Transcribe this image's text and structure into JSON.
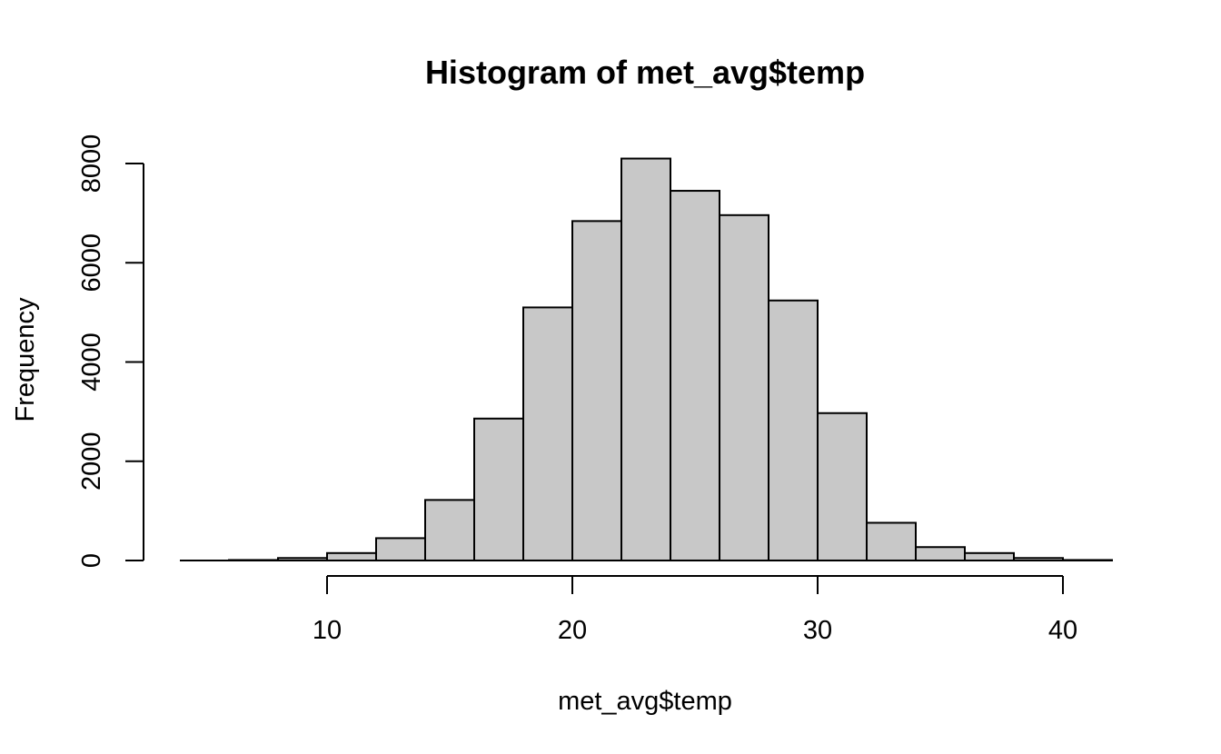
{
  "chart_data": {
    "type": "bar",
    "subtype": "histogram",
    "title": "Histogram of met_avg$temp",
    "xlabel": "met_avg$temp",
    "ylabel": "Frequency",
    "bins": [
      {
        "start": 6,
        "end": 8,
        "count": 10
      },
      {
        "start": 8,
        "end": 10,
        "count": 50
      },
      {
        "start": 10,
        "end": 12,
        "count": 150
      },
      {
        "start": 12,
        "end": 14,
        "count": 450
      },
      {
        "start": 14,
        "end": 16,
        "count": 1220
      },
      {
        "start": 16,
        "end": 18,
        "count": 2860
      },
      {
        "start": 18,
        "end": 20,
        "count": 5100
      },
      {
        "start": 20,
        "end": 22,
        "count": 6840
      },
      {
        "start": 22,
        "end": 24,
        "count": 8100
      },
      {
        "start": 24,
        "end": 26,
        "count": 7450
      },
      {
        "start": 26,
        "end": 28,
        "count": 6960
      },
      {
        "start": 28,
        "end": 30,
        "count": 5240
      },
      {
        "start": 30,
        "end": 32,
        "count": 2970
      },
      {
        "start": 32,
        "end": 34,
        "count": 760
      },
      {
        "start": 34,
        "end": 36,
        "count": 270
      },
      {
        "start": 36,
        "end": 38,
        "count": 150
      },
      {
        "start": 38,
        "end": 40,
        "count": 50
      },
      {
        "start": 40,
        "end": 42,
        "count": 10
      }
    ],
    "xlim": [
      4,
      42
    ],
    "ylim": [
      0,
      8100
    ],
    "x_ticks": [
      10,
      20,
      30,
      40
    ],
    "y_ticks": [
      0,
      2000,
      4000,
      6000,
      8000
    ],
    "grid": false,
    "bar_color": "#c8c8c8",
    "edge_color": "#000000"
  }
}
